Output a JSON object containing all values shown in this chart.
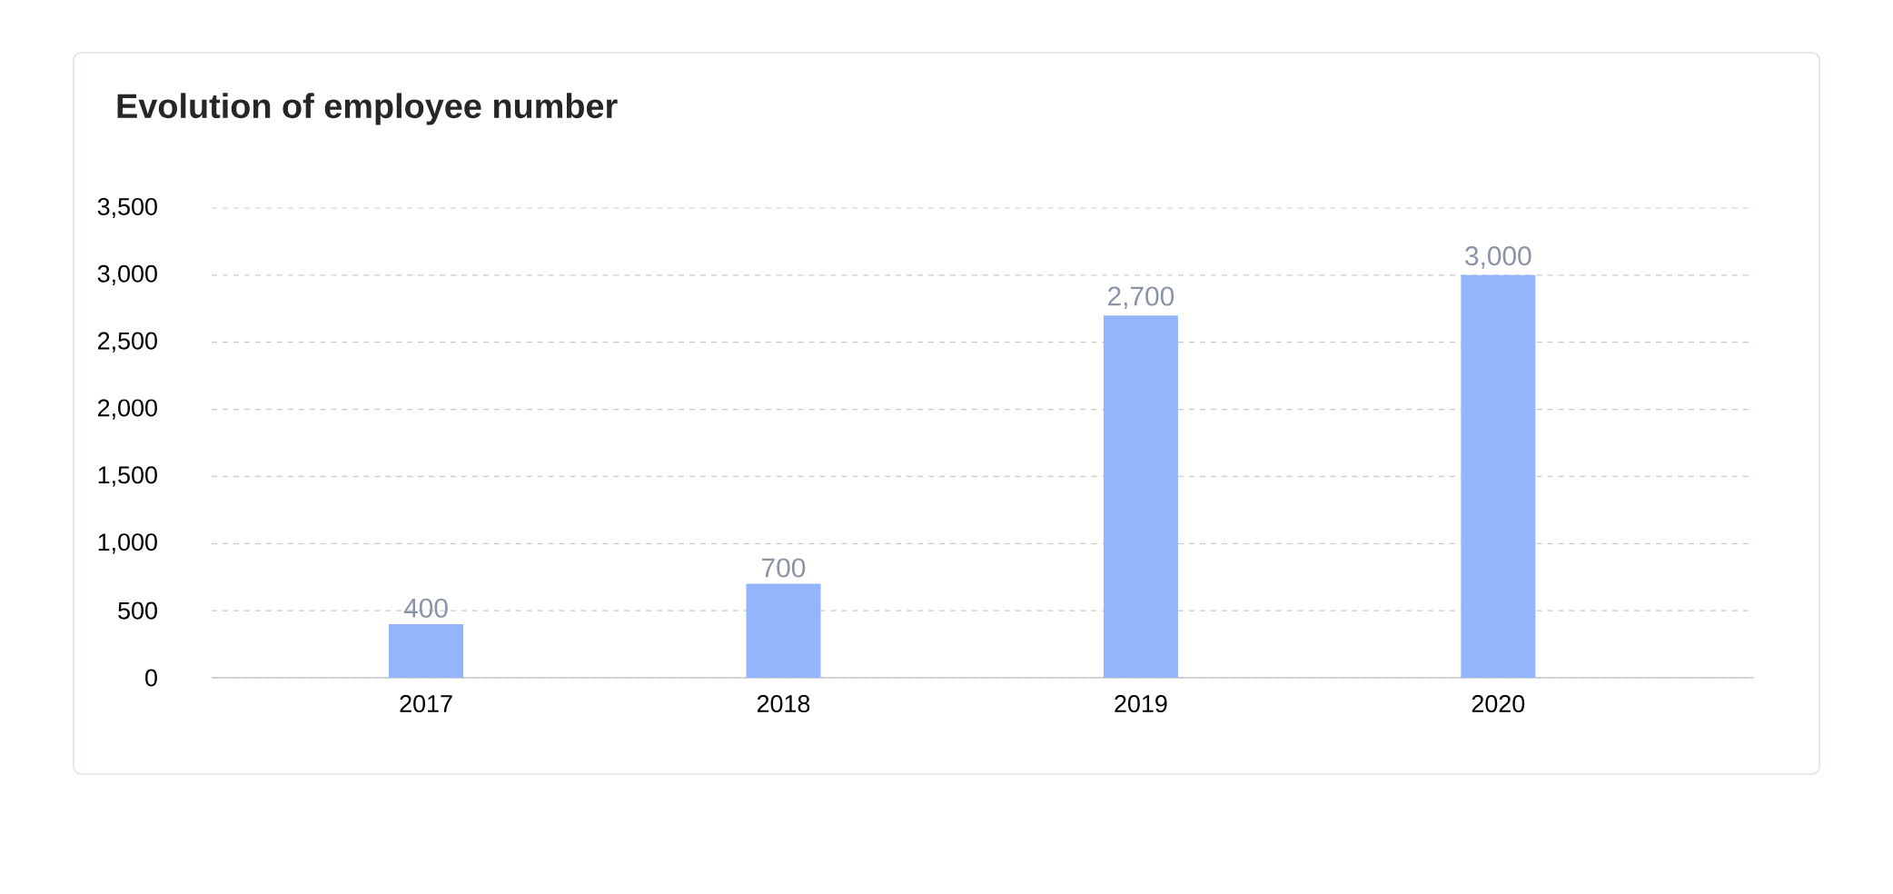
{
  "chart_data": {
    "type": "bar",
    "title": "Evolution of employee number",
    "categories": [
      "2017",
      "2018",
      "2019",
      "2020"
    ],
    "values": [
      400,
      700,
      2700,
      3000
    ],
    "value_labels": [
      "400",
      "700",
      "2,700",
      "3,000"
    ],
    "color": "#94b5fb",
    "ylim": [
      0,
      3500
    ],
    "yticks": [
      0,
      {
        "value": 500,
        "label": "500"
      },
      {
        "value": 1000,
        "label": "1,000"
      },
      {
        "value": 1500,
        "label": "1,500"
      },
      {
        "value": 2000,
        "label": "2,000"
      },
      {
        "value": 2500,
        "label": "2,500"
      },
      {
        "value": 3000,
        "label": "3,000"
      },
      {
        "value": 3500,
        "label": "3,500"
      }
    ],
    "grid": "y"
  }
}
